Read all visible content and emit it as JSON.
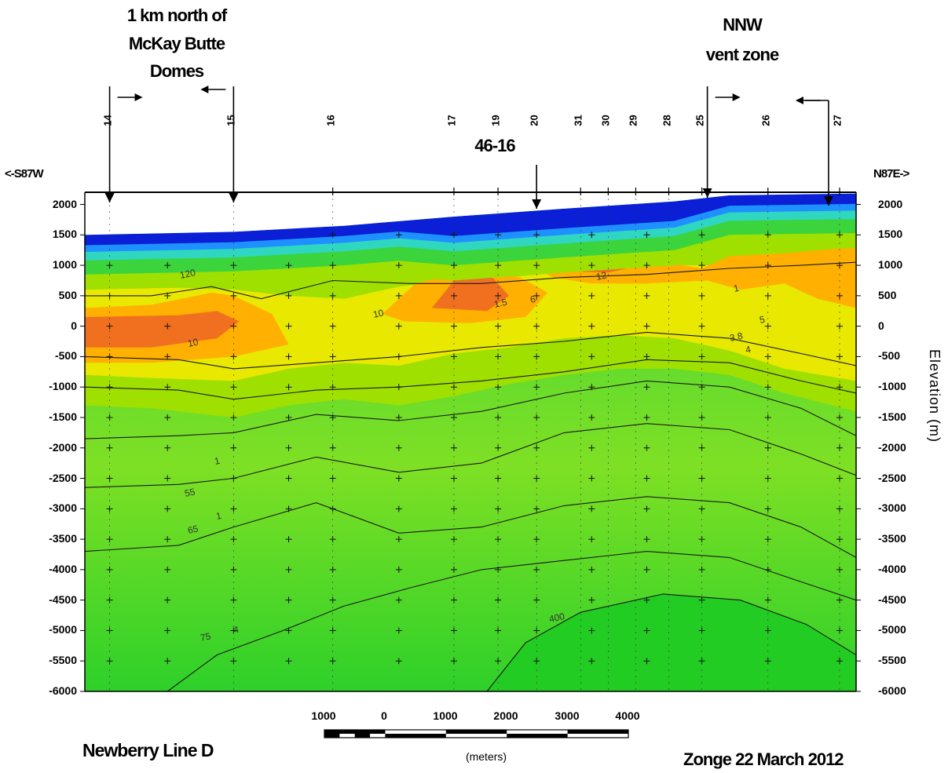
{
  "chart_data": {
    "type": "heatmap",
    "title": "Newberry  Line D",
    "credit": "Zonge 22 March 2012",
    "direction_left": "<-S87W",
    "direction_right": "N87E->",
    "ylabel": "Elevation  (m)",
    "ylim": [
      -6000,
      2200
    ],
    "yticks": [
      2000,
      1500,
      1000,
      500,
      0,
      -500,
      -1000,
      -1500,
      -2000,
      -2500,
      -3000,
      -3500,
      -4000,
      -4500,
      -5000,
      -5500,
      -6000
    ],
    "xlim": [
      -2700,
      11300
    ],
    "stations": [
      {
        "label": "14",
        "x": -2250
      },
      {
        "label": "15",
        "x": 0
      },
      {
        "label": "16",
        "x": 1800
      },
      {
        "label": "17",
        "x": 4000
      },
      {
        "label": "19",
        "x": 4800
      },
      {
        "label": "20",
        "x": 5500
      },
      {
        "label": "31",
        "x": 6300
      },
      {
        "label": "30",
        "x": 6800
      },
      {
        "label": "29",
        "x": 7300
      },
      {
        "label": "28",
        "x": 7900
      },
      {
        "label": "25",
        "x": 8500
      },
      {
        "label": "26",
        "x": 9700
      },
      {
        "label": "27",
        "x": 11000
      }
    ],
    "surface_profile": [
      {
        "x": -2700,
        "y": 1500
      },
      {
        "x": 0,
        "y": 1550
      },
      {
        "x": 2000,
        "y": 1650
      },
      {
        "x": 4000,
        "y": 1800
      },
      {
        "x": 6000,
        "y": 1930
      },
      {
        "x": 8000,
        "y": 2050
      },
      {
        "x": 9000,
        "y": 2150
      },
      {
        "x": 11300,
        "y": 2180
      }
    ],
    "resistivity_colors": {
      "very_high": "#0a1fd6",
      "high": "#1e90ff",
      "mid_high": "#2fd6c0",
      "mid": "#3cd43c",
      "low_mid": "#9fe000",
      "low": "#e8e800",
      "very_low": "#ffb000",
      "lowest": "#f07020"
    },
    "annotations": [
      {
        "id": "mckay",
        "text_lines": [
          "1 km north of",
          "McKay Butte",
          "Domes"
        ],
        "arrows_x": [
          -2250,
          0
        ]
      },
      {
        "id": "well",
        "text_lines": [
          "46-16"
        ],
        "arrows_x": [
          5500
        ]
      },
      {
        "id": "nnw",
        "text_lines": [
          "NNW",
          "vent zone"
        ],
        "arrows_x": [
          8600,
          10800
        ]
      }
    ],
    "contour_labels": [
      "120",
      "10",
      "10",
      "1.5",
      "6",
      "12",
      "1",
      "5",
      "3.8",
      "4",
      "55",
      "1",
      "65",
      "1",
      "75",
      "4",
      "400"
    ],
    "scale_bar": {
      "labels": [
        "1000",
        "0",
        "1000",
        "2000",
        "3000",
        "4000"
      ],
      "unit": "(meters)"
    }
  }
}
